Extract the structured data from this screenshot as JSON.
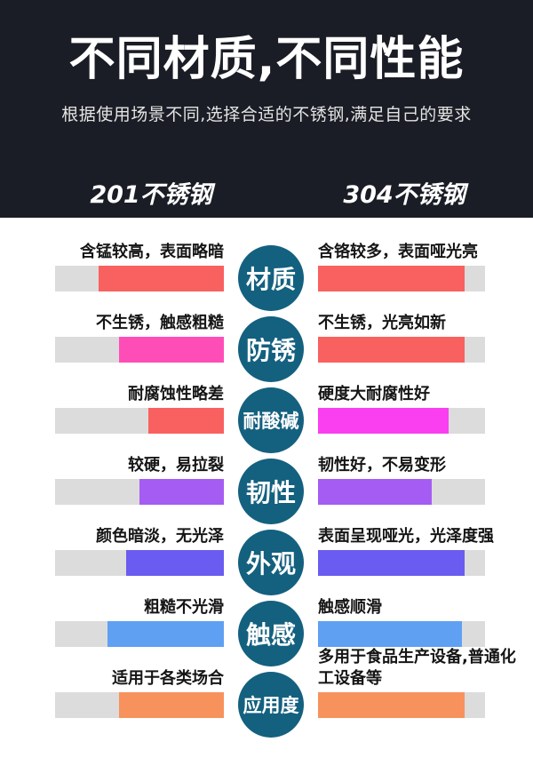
{
  "header": {
    "bg_color": "#1a1d25",
    "title": "不同材质,不同性能",
    "subtitle": "根据使用场景不同,选择合适的不锈钢,满足自己的要求",
    "columns": {
      "left": "201不锈钢",
      "right": "304不锈钢"
    }
  },
  "colors": {
    "track_gray": "#dcdcdc",
    "circle_blue": "#14607f",
    "red": "#f96060",
    "pink": "#ff4db8",
    "magenta": "#f93ff0",
    "purple": "#a55cf3",
    "indigo": "#6a5cf0",
    "light_blue": "#5fa0f3",
    "orange": "#f8925c"
  },
  "rows": [
    {
      "category": "材质",
      "left": {
        "label": "含锰较高，表面略暗",
        "fill_percent": 74,
        "color": "#f96060"
      },
      "right": {
        "label": "含铬较多，表面哑光亮",
        "fill_percent": 88,
        "color": "#f96060"
      }
    },
    {
      "category": "防锈",
      "left": {
        "label": "不生锈，触感粗糙",
        "fill_percent": 62,
        "color": "#ff4db8"
      },
      "right": {
        "label": "不生锈，光亮如新",
        "fill_percent": 88,
        "color": "#f96060"
      }
    },
    {
      "category": "耐酸碱",
      "left": {
        "label": "耐腐蚀性略差",
        "fill_percent": 45,
        "color": "#f96060"
      },
      "right": {
        "label": "硬度大耐腐性好",
        "fill_percent": 78,
        "color": "#f93ff0"
      }
    },
    {
      "category": "韧性",
      "left": {
        "label": "较硬，易拉裂",
        "fill_percent": 50,
        "color": "#a55cf3"
      },
      "right": {
        "label": "韧性好，不易变形",
        "fill_percent": 68,
        "color": "#a55cf3"
      }
    },
    {
      "category": "外观",
      "left": {
        "label": "颜色暗淡，无光泽",
        "fill_percent": 58,
        "color": "#6a5cf0"
      },
      "right": {
        "label": "表面呈现哑光，光泽度强",
        "fill_percent": 88,
        "color": "#6a5cf0"
      }
    },
    {
      "category": "触感",
      "left": {
        "label": "粗糙不光滑",
        "fill_percent": 69,
        "color": "#5fa0f3"
      },
      "right": {
        "label": "触感顺滑",
        "fill_percent": 86,
        "color": "#5fa0f3"
      }
    },
    {
      "category": "应用度",
      "left": {
        "label": "适用于各类场合",
        "fill_percent": 62,
        "color": "#f8925c"
      },
      "right": {
        "label": "多用于食品生产设备,普通化工设备等",
        "fill_percent": 88,
        "color": "#f8925c"
      }
    }
  ]
}
